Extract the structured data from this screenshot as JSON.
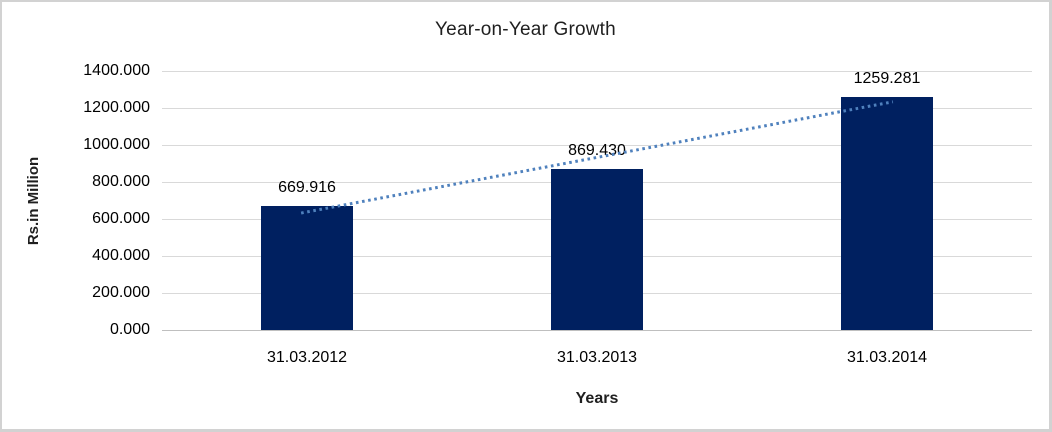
{
  "chart_data": {
    "type": "bar",
    "title": "Year-on-Year Growth",
    "xlabel": "Years",
    "ylabel": "Rs.in Million",
    "categories": [
      "31.03.2012",
      "31.03.2013",
      "31.03.2014"
    ],
    "values": [
      669.916,
      869.43,
      1259.281
    ],
    "data_labels": [
      "669.916",
      "869.430",
      "1259.281"
    ],
    "y_tick_labels": [
      "0.000",
      "200.000",
      "400.000",
      "600.000",
      "800.000",
      "1000.000",
      "1200.000",
      "1400.000"
    ],
    "y_tick_values": [
      0,
      200,
      400,
      600,
      800,
      1000,
      1200,
      1400
    ],
    "ylim": [
      0,
      1400
    ],
    "grid": true,
    "legend": "none",
    "trendline": true,
    "colors": {
      "bar": "#002060",
      "trendline": "#4F81BD",
      "gridline": "#D9D9D9",
      "baseline": "#BFBFBF",
      "text": "#000000"
    }
  }
}
